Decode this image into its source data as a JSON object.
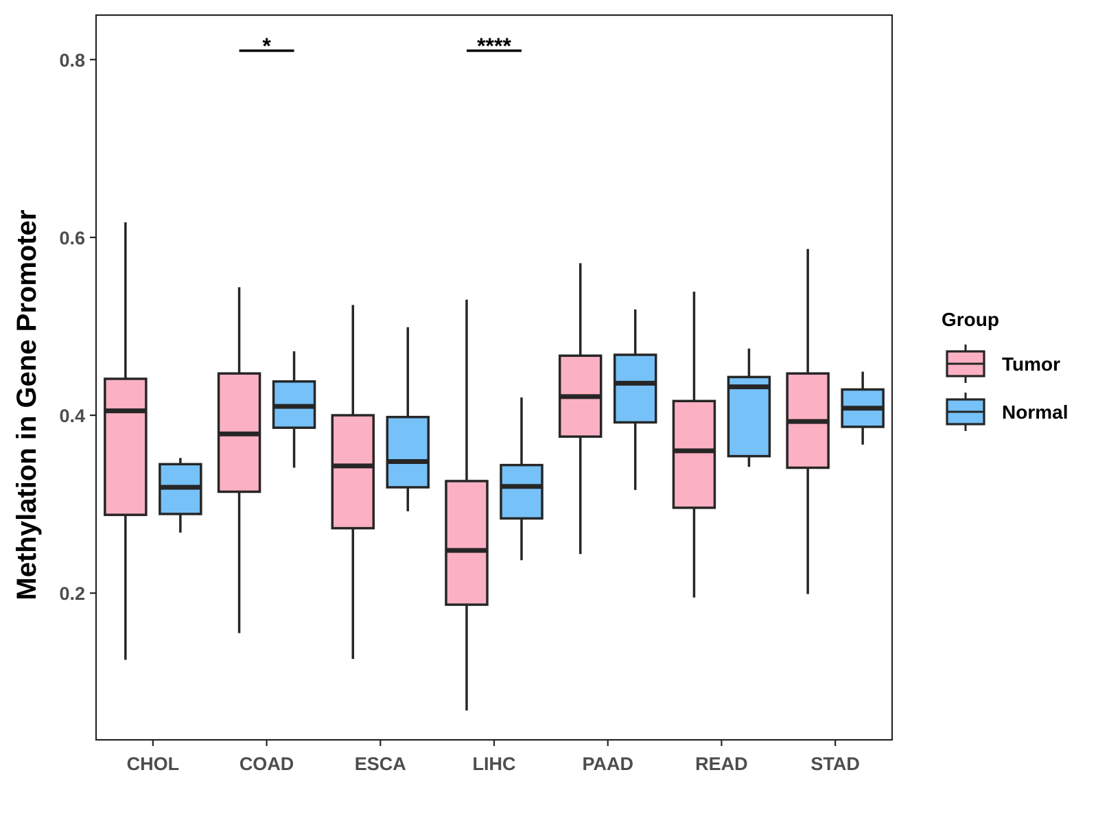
{
  "chart_data": {
    "type": "box",
    "title": "",
    "xlabel": "",
    "ylabel": "Methylation in Gene Promoter",
    "ylim": [
      0.035,
      0.85
    ],
    "yticks": [
      0.2,
      0.4,
      0.6,
      0.8
    ],
    "ytick_labels": [
      "0.2",
      "0.4",
      "0.6",
      "0.8"
    ],
    "categories": [
      "CHOL",
      "COAD",
      "ESCA",
      "LIHC",
      "PAAD",
      "READ",
      "STAD"
    ],
    "legend": {
      "title": "Group",
      "position": "right",
      "entries": [
        {
          "name": "Tumor",
          "color": "#FBB1C3"
        },
        {
          "name": "Normal",
          "color": "#76C1F8"
        }
      ]
    },
    "series": [
      {
        "name": "Tumor",
        "color": "#FBB1C3",
        "boxes": [
          {
            "category": "CHOL",
            "whisker_low": 0.125,
            "q1": 0.288,
            "median": 0.405,
            "q3": 0.441,
            "whisker_high": 0.617
          },
          {
            "category": "COAD",
            "whisker_low": 0.155,
            "q1": 0.314,
            "median": 0.379,
            "q3": 0.447,
            "whisker_high": 0.544
          },
          {
            "category": "ESCA",
            "whisker_low": 0.126,
            "q1": 0.273,
            "median": 0.343,
            "q3": 0.4,
            "whisker_high": 0.524
          },
          {
            "category": "LIHC",
            "whisker_low": 0.068,
            "q1": 0.187,
            "median": 0.248,
            "q3": 0.326,
            "whisker_high": 0.53
          },
          {
            "category": "PAAD",
            "whisker_low": 0.244,
            "q1": 0.376,
            "median": 0.421,
            "q3": 0.467,
            "whisker_high": 0.571
          },
          {
            "category": "READ",
            "whisker_low": 0.195,
            "q1": 0.296,
            "median": 0.36,
            "q3": 0.416,
            "whisker_high": 0.539
          },
          {
            "category": "STAD",
            "whisker_low": 0.199,
            "q1": 0.341,
            "median": 0.393,
            "q3": 0.447,
            "whisker_high": 0.587
          }
        ]
      },
      {
        "name": "Normal",
        "color": "#76C1F8",
        "boxes": [
          {
            "category": "CHOL",
            "whisker_low": 0.268,
            "q1": 0.289,
            "median": 0.319,
            "q3": 0.345,
            "whisker_high": 0.352
          },
          {
            "category": "COAD",
            "whisker_low": 0.341,
            "q1": 0.386,
            "median": 0.41,
            "q3": 0.438,
            "whisker_high": 0.472
          },
          {
            "category": "ESCA",
            "whisker_low": 0.292,
            "q1": 0.319,
            "median": 0.348,
            "q3": 0.398,
            "whisker_high": 0.499
          },
          {
            "category": "LIHC",
            "whisker_low": 0.237,
            "q1": 0.284,
            "median": 0.32,
            "q3": 0.344,
            "whisker_high": 0.42
          },
          {
            "category": "PAAD",
            "whisker_low": 0.316,
            "q1": 0.392,
            "median": 0.436,
            "q3": 0.468,
            "whisker_high": 0.519
          },
          {
            "category": "READ",
            "whisker_low": 0.342,
            "q1": 0.354,
            "median": 0.432,
            "q3": 0.443,
            "whisker_high": 0.475
          },
          {
            "category": "STAD",
            "whisker_low": 0.367,
            "q1": 0.387,
            "median": 0.408,
            "q3": 0.429,
            "whisker_high": 0.449
          }
        ]
      }
    ],
    "annotations": [
      {
        "category": "COAD",
        "label": "*",
        "y": 0.81
      },
      {
        "category": "LIHC",
        "label": "****",
        "y": 0.81
      }
    ]
  }
}
